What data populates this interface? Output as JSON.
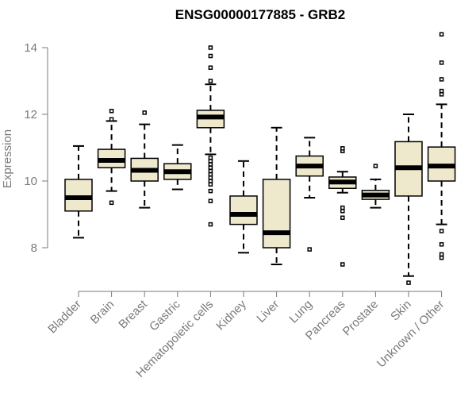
{
  "chart_data": {
    "type": "box",
    "title": "ENSG00000177885 - GRB2",
    "xlabel": "",
    "ylabel": "Expression",
    "ylim": [
      6.8,
      14.5
    ],
    "yticks": [
      8,
      10,
      12,
      14
    ],
    "categories": [
      "Bladder",
      "Brain",
      "Breast",
      "Gastric",
      "Hematopoietic cells",
      "Kidney",
      "Liver",
      "Lung",
      "Pancreas",
      "Prostate",
      "Skin",
      "Unknown / Other"
    ],
    "boxes": [
      {
        "category": "Bladder",
        "whisker_low": 8.3,
        "q1": 9.1,
        "median": 9.5,
        "q3": 10.05,
        "whisker_high": 11.05,
        "outliers": []
      },
      {
        "category": "Brain",
        "whisker_low": 9.7,
        "q1": 10.4,
        "median": 10.62,
        "q3": 10.95,
        "whisker_high": 11.8,
        "outliers": [
          9.35,
          11.85,
          12.1
        ]
      },
      {
        "category": "Breast",
        "whisker_low": 9.2,
        "q1": 10.0,
        "median": 10.32,
        "q3": 10.68,
        "whisker_high": 11.7,
        "outliers": [
          12.05
        ]
      },
      {
        "category": "Gastric",
        "whisker_low": 9.75,
        "q1": 10.05,
        "median": 10.28,
        "q3": 10.52,
        "whisker_high": 11.08,
        "outliers": []
      },
      {
        "category": "Hematopoietic cells",
        "whisker_low": 10.8,
        "q1": 11.6,
        "median": 11.92,
        "q3": 12.12,
        "whisker_high": 12.9,
        "outliers": [
          8.7,
          9.4,
          9.7,
          9.9,
          10.0,
          10.1,
          10.2,
          10.3,
          10.4,
          10.5,
          10.6,
          10.7,
          13.0,
          13.4,
          13.75,
          14.0
        ]
      },
      {
        "category": "Kidney",
        "whisker_low": 7.85,
        "q1": 8.7,
        "median": 9.0,
        "q3": 9.55,
        "whisker_high": 10.6,
        "outliers": []
      },
      {
        "category": "Liver",
        "whisker_low": 7.5,
        "q1": 8.0,
        "median": 8.45,
        "q3": 10.05,
        "whisker_high": 11.6,
        "outliers": []
      },
      {
        "category": "Lung",
        "whisker_low": 9.5,
        "q1": 10.15,
        "median": 10.45,
        "q3": 10.75,
        "whisker_high": 11.3,
        "outliers": [
          7.95
        ]
      },
      {
        "category": "Pancreas",
        "whisker_low": 9.65,
        "q1": 9.78,
        "median": 9.97,
        "q3": 10.12,
        "whisker_high": 10.28,
        "outliers": [
          7.5,
          8.9,
          9.1,
          9.2,
          10.9,
          10.98
        ]
      },
      {
        "category": "Prostate",
        "whisker_low": 9.2,
        "q1": 9.45,
        "median": 9.58,
        "q3": 9.72,
        "whisker_high": 10.05,
        "outliers": [
          10.45
        ]
      },
      {
        "category": "Skin",
        "whisker_low": 7.15,
        "q1": 9.55,
        "median": 10.4,
        "q3": 11.18,
        "whisker_high": 12.0,
        "outliers": [
          6.95
        ]
      },
      {
        "category": "Unknown / Other",
        "whisker_low": 8.7,
        "q1": 10.0,
        "median": 10.45,
        "q3": 11.02,
        "whisker_high": 12.3,
        "outliers": [
          7.7,
          7.8,
          8.1,
          8.5,
          12.6,
          12.7,
          13.05,
          13.55,
          14.4
        ]
      }
    ],
    "grid": false,
    "legend": "none"
  }
}
